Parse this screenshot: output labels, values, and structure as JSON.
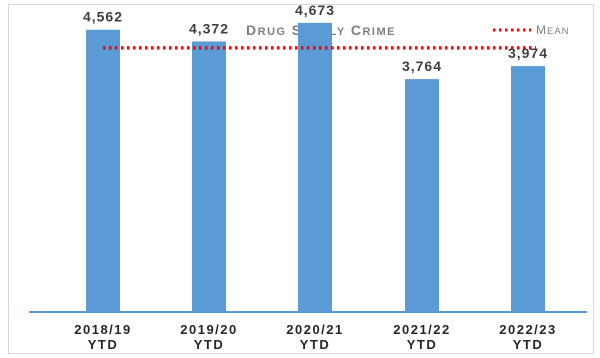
{
  "chart_data": {
    "type": "bar",
    "title": "Drug Supply Crime",
    "categories": [
      [
        "2018/19",
        "YTD"
      ],
      [
        "2019/20",
        "YTD"
      ],
      [
        "2020/21",
        "YTD"
      ],
      [
        "2021/22",
        "YTD"
      ],
      [
        "2022/23",
        "YTD"
      ]
    ],
    "values": [
      4562,
      4372,
      4673,
      3764,
      3974
    ],
    "value_labels": [
      "4,562",
      "4,372",
      "4,673",
      "3,764",
      "3,974"
    ],
    "mean": 4269,
    "legend": {
      "entries": [
        "Mean"
      ],
      "placement": "top-right"
    },
    "xlabel": "",
    "ylabel": "",
    "ylim": [
      0,
      4800
    ],
    "grid": false,
    "colors": {
      "bar": "#5b9bd5",
      "mean": "#ff0000",
      "axis": "#5b9bd5",
      "title": "#7f7f7f"
    }
  }
}
